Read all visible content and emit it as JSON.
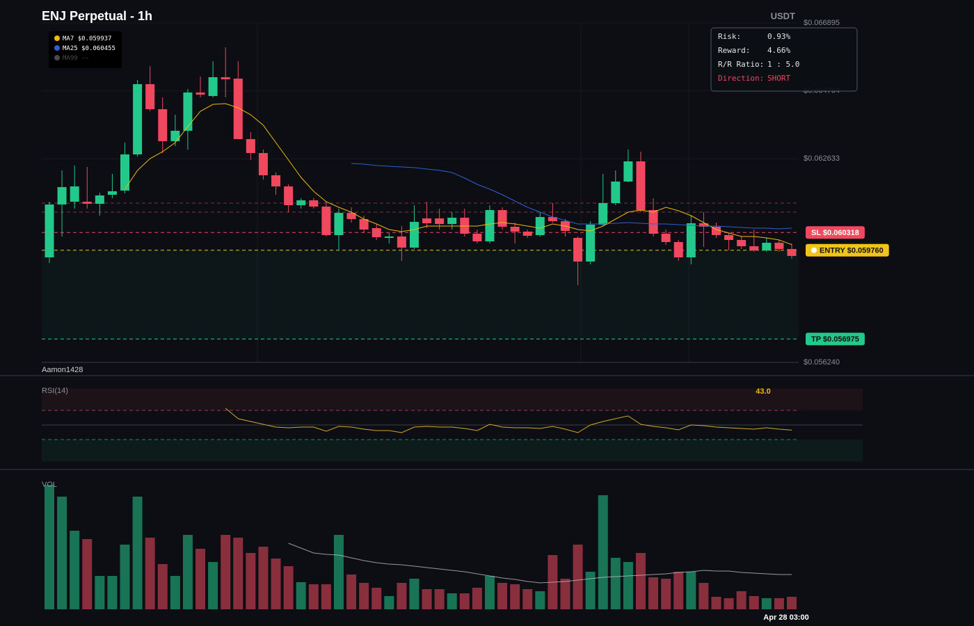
{
  "chart_data": [
    {
      "type": "candlestick",
      "title": "ENJ Perpetual - 1h",
      "currency": "USDT",
      "watermark": "Aamon1428",
      "categories": [
        null,
        null,
        null,
        null,
        null,
        null,
        null,
        null,
        null,
        null,
        null,
        null,
        null,
        null,
        null,
        null,
        null,
        null,
        null,
        null,
        null,
        null,
        null,
        null,
        null,
        null,
        null,
        null,
        null,
        null,
        null,
        null,
        null,
        null,
        null,
        null,
        null,
        null,
        null,
        null,
        null,
        null,
        null,
        null,
        null,
        null,
        null,
        null,
        null,
        null,
        null,
        null,
        null,
        null,
        null,
        null,
        null,
        null,
        null,
        "Apr 28 03:00"
      ],
      "open": [
        0.059537,
        0.061196,
        0.061284,
        0.061284,
        0.061218,
        0.061502,
        0.061633,
        0.062768,
        0.064974,
        0.064188,
        0.063183,
        0.063511,
        0.064712,
        0.064602,
        0.065192,
        0.065148,
        0.063249,
        0.062812,
        0.062113,
        0.061764,
        0.061174,
        0.061327,
        0.061131,
        0.060236,
        0.060934,
        0.060738,
        0.060454,
        0.060148,
        0.060192,
        0.059843,
        0.06076,
        0.06076,
        0.060585,
        0.060781,
        0.060279,
        0.060039,
        0.061022,
        0.060498,
        0.060345,
        0.060236,
        0.060803,
        0.060672,
        0.060148,
        0.059406,
        0.060563,
        0.06124,
        0.061917,
        0.06255,
        0.061022,
        0.060279,
        0.060017,
        0.059537,
        0.060607,
        0.060498,
        0.060236,
        0.060083,
        0.059886,
        0.059755,
        0.059995,
        0.059799
      ],
      "high": [
        0.061284,
        0.062266,
        0.062419,
        0.062375,
        0.061567,
        0.062157,
        0.06314,
        0.065105,
        0.065541,
        0.064559,
        0.064013,
        0.064821,
        0.065214,
        0.065694,
        0.066131,
        0.065694,
        0.063467,
        0.062921,
        0.062201,
        0.06183,
        0.061393,
        0.061393,
        0.061284,
        0.061065,
        0.061109,
        0.060847,
        0.060585,
        0.060301,
        0.060519,
        0.061174,
        0.061284,
        0.061065,
        0.060956,
        0.061065,
        0.06041,
        0.061174,
        0.061109,
        0.060629,
        0.06041,
        0.060956,
        0.06124,
        0.060738,
        0.060192,
        0.060672,
        0.062157,
        0.062266,
        0.062921,
        0.062856,
        0.061393,
        0.06041,
        0.060083,
        0.060847,
        0.060956,
        0.060629,
        0.060301,
        0.060192,
        0.06041,
        0.060148,
        0.060083,
        0.059974
      ],
      "low": [
        0.059362,
        0.060192,
        0.061065,
        0.061065,
        0.060847,
        0.061393,
        0.061546,
        0.062703,
        0.064122,
        0.062812,
        0.06303,
        0.062921,
        0.064559,
        0.064559,
        0.064559,
        0.063249,
        0.062594,
        0.061982,
        0.061502,
        0.060956,
        0.061065,
        0.061065,
        0.060192,
        0.059755,
        0.060629,
        0.060301,
        0.060083,
        0.059974,
        0.059428,
        0.059799,
        0.060454,
        0.06041,
        0.06041,
        0.060192,
        0.059974,
        0.059974,
        0.06041,
        0.059974,
        0.060148,
        0.060192,
        0.060629,
        0.060192,
        0.058664,
        0.059319,
        0.060519,
        0.061174,
        0.061895,
        0.060956,
        0.060192,
        0.05993,
        0.059428,
        0.059319,
        0.059864,
        0.060148,
        0.059755,
        0.059799,
        0.059712,
        0.059712,
        0.059712,
        0.059493
      ],
      "close": [
        0.061196,
        0.061742,
        0.061764,
        0.061218,
        0.06148,
        0.061611,
        0.062768,
        0.064974,
        0.064188,
        0.063183,
        0.063511,
        0.064712,
        0.064646,
        0.065192,
        0.065126,
        0.063249,
        0.062812,
        0.062113,
        0.061764,
        0.061174,
        0.061327,
        0.061131,
        0.060236,
        0.060934,
        0.060738,
        0.06041,
        0.06017,
        0.060192,
        0.059843,
        0.06065,
        0.060607,
        0.060585,
        0.060781,
        0.060279,
        0.060039,
        0.061022,
        0.060498,
        0.060345,
        0.060214,
        0.060803,
        0.060672,
        0.060367,
        0.059406,
        0.060563,
        0.06124,
        0.061917,
        0.06255,
        0.061022,
        0.060279,
        0.060017,
        0.059537,
        0.060607,
        0.060498,
        0.060236,
        0.060083,
        0.059886,
        0.059755,
        0.059995,
        0.059799,
        0.059581
      ],
      "up_color": "#22c98a",
      "down_color": "#f0485e",
      "ylim": [
        0.05624,
        0.066895
      ],
      "yticks": [
        {
          "value": 0.066895,
          "label": "$0.066895"
        },
        {
          "value": 0.064764,
          "label": "$0.064764"
        },
        {
          "value": 0.062633,
          "label": "$0.062633"
        },
        {
          "value": 0.05624,
          "label": "$0.056240"
        }
      ],
      "series": [
        {
          "name": "MA7",
          "color": "#f0b90b",
          "legend_value": "$0.059937",
          "values": [
            null,
            null,
            null,
            null,
            null,
            null,
            0.061677,
            0.062266,
            0.062637,
            0.062856,
            0.06314,
            0.063642,
            0.064122,
            0.06434,
            0.064362,
            0.064231,
            0.064013,
            0.063685,
            0.06314,
            0.062594,
            0.062048,
            0.061611,
            0.061284,
            0.061109,
            0.060956,
            0.060738,
            0.060585,
            0.06041,
            0.060345,
            0.06041,
            0.060519,
            0.060519,
            0.060519,
            0.060519,
            0.060519,
            0.060585,
            0.060629,
            0.060585,
            0.060519,
            0.060454,
            0.060585,
            0.060519,
            0.06041,
            0.060367,
            0.060519,
            0.060738,
            0.060956,
            0.061022,
            0.060956,
            0.061109,
            0.061,
            0.060847,
            0.060629,
            0.06041,
            0.060301,
            0.060192,
            0.060192,
            0.060148,
            0.060083,
            0.059937
          ]
        },
        {
          "name": "MA25",
          "color": "#2f5fd0",
          "legend_value": "$0.060455",
          "values": [
            null,
            null,
            null,
            null,
            null,
            null,
            null,
            null,
            null,
            null,
            null,
            null,
            null,
            null,
            null,
            null,
            null,
            null,
            null,
            null,
            null,
            null,
            null,
            null,
            0.062485,
            0.062463,
            0.062419,
            0.062397,
            0.062375,
            0.062354,
            0.06231,
            0.062266,
            0.062201,
            0.062026,
            0.06183,
            0.061677,
            0.061502,
            0.061305,
            0.061109,
            0.060956,
            0.060803,
            0.060694,
            0.060585,
            0.060585,
            0.060585,
            0.060607,
            0.060629,
            0.060607,
            0.060585,
            0.060585,
            0.060563,
            0.060541,
            0.060519,
            0.060519,
            0.060498,
            0.060476,
            0.060454,
            0.060454,
            0.060432,
            0.060455
          ]
        },
        {
          "name": "MA99",
          "color": "#4a4a4a",
          "legend_value": "--"
        }
      ],
      "levels": {
        "sl": {
          "value": 0.060318,
          "label": "SL $0.060318",
          "color": "#f0485e"
        },
        "entry": {
          "value": 0.05976,
          "label": "ENTRY $0.059760",
          "color": "#f0c419"
        },
        "tp": {
          "value": 0.056975,
          "label": "TP $0.056975",
          "color": "#22c98a"
        }
      },
      "dashed_levels": [
        0.06124,
        0.060956
      ],
      "trade_info": [
        {
          "label": "Risk:",
          "value": "0.93%"
        },
        {
          "label": "Reward:",
          "value": "4.66%"
        },
        {
          "label": "R/R Ratio:",
          "value": "1 : 5.0"
        },
        {
          "label": "Direction:",
          "value": "SHORT"
        }
      ]
    },
    {
      "type": "line",
      "title": "RSI(14)",
      "color": "#d4a82a",
      "values": [
        null,
        null,
        null,
        null,
        null,
        null,
        null,
        null,
        null,
        null,
        null,
        null,
        null,
        null,
        72.9,
        58.7,
        54.8,
        51.0,
        47.1,
        46.2,
        47.1,
        47.1,
        41.4,
        48.1,
        47.1,
        44.3,
        42.4,
        42.4,
        39.5,
        47.1,
        48.1,
        47.1,
        47.1,
        45.2,
        42.4,
        51.0,
        47.1,
        46.2,
        46.2,
        45.2,
        48.1,
        44.3,
        39.5,
        50.0,
        54.8,
        58.7,
        62.4,
        51.0,
        48.1,
        46.2,
        43.3,
        50.0,
        49.0,
        47.1,
        46.2,
        45.2,
        44.3,
        46.2,
        44.3,
        43.0
      ],
      "current_label": "43.0",
      "ylim": [
        0,
        100
      ],
      "overbought": 70,
      "midline": 50,
      "oversold": 30
    },
    {
      "type": "bar",
      "title": "VOL",
      "values": [
        179,
        162,
        113,
        101,
        48,
        48,
        93,
        162,
        103,
        65,
        48,
        107,
        87,
        68,
        107,
        103,
        81,
        90,
        73,
        62,
        39,
        36,
        36,
        107,
        50,
        38,
        31,
        19,
        38,
        44,
        29,
        29,
        23,
        23,
        31,
        48,
        38,
        36,
        29,
        26,
        78,
        44,
        93,
        54,
        164,
        74,
        68,
        81,
        46,
        44,
        54,
        54,
        38,
        18,
        16,
        26,
        19,
        16,
        16,
        18
      ],
      "ma_color": "#bdbdbd",
      "ma_values": [
        null,
        null,
        null,
        null,
        null,
        null,
        null,
        null,
        null,
        null,
        null,
        null,
        null,
        null,
        null,
        null,
        null,
        null,
        null,
        95,
        88,
        81,
        79,
        78,
        74,
        70,
        67,
        65,
        64,
        62,
        60,
        58,
        56,
        54,
        51,
        48,
        45,
        43,
        40,
        38,
        39,
        40,
        42,
        44,
        46,
        47,
        48,
        49,
        50,
        51,
        53,
        54,
        56,
        55,
        55,
        53,
        52,
        51,
        50,
        50
      ],
      "ylim": [
        0,
        180
      ]
    }
  ]
}
